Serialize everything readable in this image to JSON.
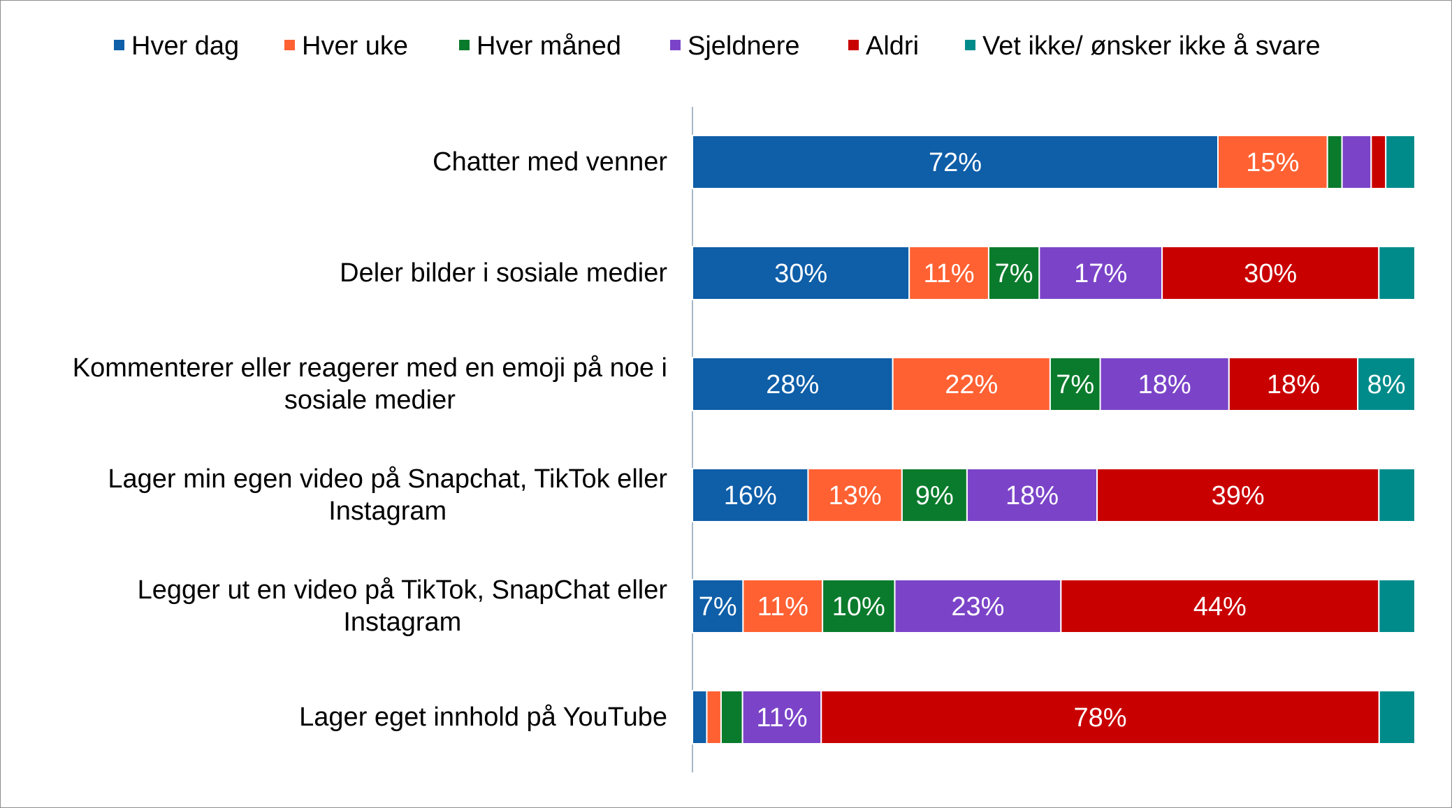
{
  "chart_data": {
    "type": "bar",
    "orientation": "horizontal",
    "stacked": true,
    "title": "",
    "xlabel": "",
    "ylabel": "",
    "xlim": [
      0,
      100
    ],
    "grid": false,
    "legend_position": "top",
    "categories": [
      [
        "Chatter med venner"
      ],
      [
        "Deler bilder i sosiale medier"
      ],
      [
        "Kommenterer eller reagerer med en emoji på noe i",
        "sosiale medier"
      ],
      [
        "Lager min egen video på Snapchat, TikTok eller",
        "Instagram"
      ],
      [
        "Legger ut en video på TikTok, SnapChat eller",
        "Instagram"
      ],
      [
        "Lager eget innhold på YouTube"
      ]
    ],
    "series": [
      {
        "name": "Hver dag",
        "color": "#0e5ea8",
        "values": [
          72,
          30,
          28,
          16,
          7,
          2
        ],
        "labels": [
          "72%",
          "30%",
          "28%",
          "16%",
          "7%",
          ""
        ]
      },
      {
        "name": "Hver uke",
        "color": "#ff6133",
        "values": [
          15,
          11,
          22,
          13,
          11,
          2
        ],
        "labels": [
          "15%",
          "11%",
          "22%",
          "13%",
          "11%",
          ""
        ]
      },
      {
        "name": "Hver måned",
        "color": "#0a7b2c",
        "values": [
          2,
          7,
          7,
          9,
          10,
          3
        ],
        "labels": [
          "",
          "7%",
          "7%",
          "9%",
          "10%",
          ""
        ]
      },
      {
        "name": "Sjeldnere",
        "color": "#7b44c8",
        "values": [
          4,
          17,
          18,
          18,
          23,
          11
        ],
        "labels": [
          "",
          "17%",
          "18%",
          "18%",
          "23%",
          "11%"
        ]
      },
      {
        "name": "Aldri",
        "color": "#c90000",
        "values": [
          2,
          30,
          18,
          39,
          44,
          78
        ],
        "labels": [
          "",
          "30%",
          "18%",
          "39%",
          "44%",
          "78%"
        ]
      },
      {
        "name": "Vet ikke/ ønsker ikke å svare",
        "color": "#008b8b",
        "values": [
          4,
          5,
          8,
          5,
          5,
          5
        ],
        "labels": [
          "",
          "",
          "8%",
          "",
          "",
          ""
        ]
      }
    ]
  }
}
